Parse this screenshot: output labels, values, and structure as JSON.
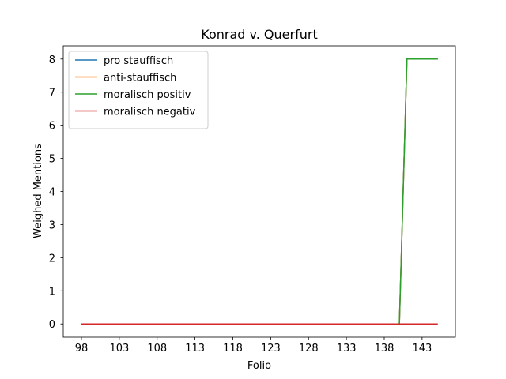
{
  "chart_data": {
    "type": "line",
    "title": "Konrad v. Querfurt",
    "xlabel": "Folio",
    "ylabel": "Weighed Mentions",
    "xlim": [
      95.6,
      147.4
    ],
    "ylim": [
      -0.4,
      8.4
    ],
    "xticks": [
      98,
      103,
      108,
      113,
      118,
      123,
      128,
      133,
      138,
      143
    ],
    "yticks": [
      0,
      1,
      2,
      3,
      4,
      5,
      6,
      7,
      8
    ],
    "grid": false,
    "legend_position": "upper left",
    "x": [
      98,
      140,
      141,
      145
    ],
    "series": [
      {
        "name": "pro stauffisch",
        "color": "#1f77b4",
        "values": [
          0,
          0,
          8,
          8
        ]
      },
      {
        "name": "anti-stauffisch",
        "color": "#ff7f0e",
        "values": [
          0,
          0,
          8,
          8
        ]
      },
      {
        "name": "moralisch positiv",
        "color": "#2ca02c",
        "values": [
          0,
          0,
          8,
          8
        ]
      },
      {
        "name": "moralisch negativ",
        "color": "#d62728",
        "values": [
          0,
          0,
          0,
          0
        ]
      }
    ]
  }
}
